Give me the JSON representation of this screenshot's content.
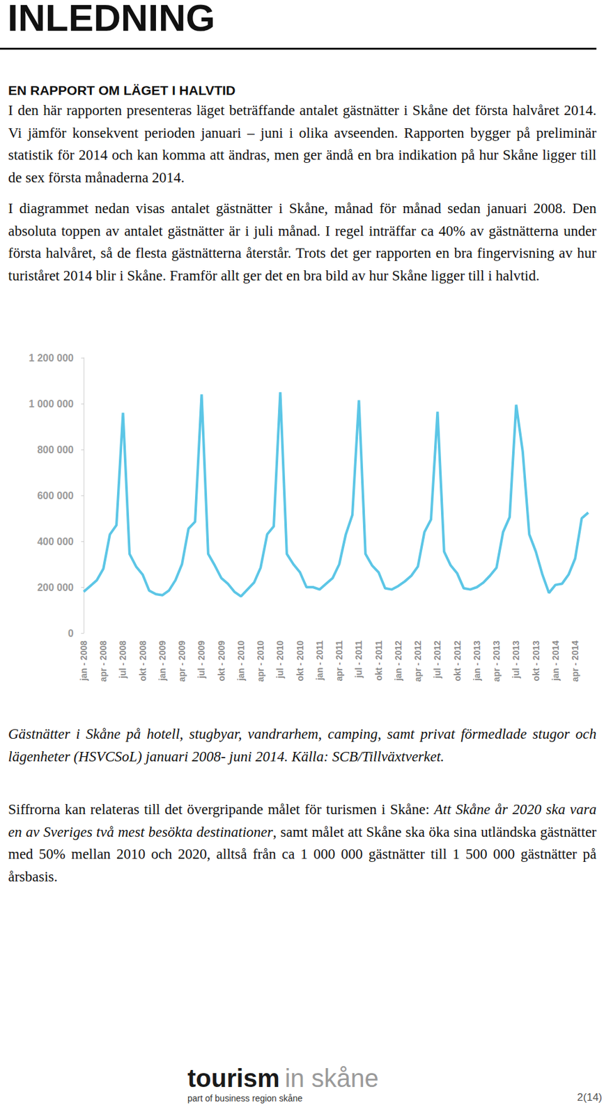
{
  "heading": "INLEDNING",
  "section_title": "EN RAPPORT OM LÄGET I HALVTID",
  "paragraphs": [
    [
      {
        "text": "I den här rapporten presenteras läget beträffande antalet gästnätter i Skåne det första halvåret 2014. Vi jämför konsekvent perioden januari – juni i olika avseenden. Rapporten bygger på preliminär statistik för 2014 och kan komma att ändras, men ger ändå en bra indikation på hur Skåne ligger till de sex första månaderna 2014.",
        "italic": false
      }
    ],
    [
      {
        "text": "I diagrammet nedan visas antalet gästnätter i Skåne, månad för månad sedan januari 2008. Den absoluta toppen av antalet gästnätter är i juli månad. I regel inträffar ca 40% av gästnätterna under första halvåret, så de flesta gästnätterna återstår. Trots det ger rapporten en bra fingervisning av hur turiståret 2014 blir i Skåne. Framför allt ger det en bra bild av hur Skåne ligger till i halvtid.",
        "italic": false
      }
    ]
  ],
  "chart_data": {
    "type": "line",
    "categories": [
      "jan - 2008",
      null,
      null,
      "apr - 2008",
      null,
      null,
      "jul - 2008",
      null,
      null,
      "okt - 2008",
      null,
      null,
      "jan - 2009",
      null,
      null,
      "apr - 2009",
      null,
      null,
      "jul - 2009",
      null,
      null,
      "okt - 2009",
      null,
      null,
      "jan - 2010",
      null,
      null,
      "apr - 2010",
      null,
      null,
      "jul - 2010",
      null,
      null,
      "okt - 2010",
      null,
      null,
      "jan - 2011",
      null,
      null,
      "apr - 2011",
      null,
      null,
      "jul - 2011",
      null,
      null,
      "okt - 2011",
      null,
      null,
      "jan - 2012",
      null,
      null,
      "apr - 2012",
      null,
      null,
      "jul - 2012",
      null,
      null,
      "okt - 2012",
      null,
      null,
      "jan - 2013",
      null,
      null,
      "apr - 2013",
      null,
      null,
      "jul - 2013",
      null,
      null,
      "okt - 2013",
      null,
      null,
      "jan - 2014",
      null,
      null,
      "apr - 2014",
      null,
      null
    ],
    "values": [
      180000,
      205000,
      230000,
      280000,
      430000,
      470000,
      960000,
      345000,
      290000,
      255000,
      185000,
      170000,
      165000,
      185000,
      230000,
      300000,
      455000,
      485000,
      1040000,
      345000,
      295000,
      240000,
      215000,
      180000,
      160000,
      190000,
      220000,
      285000,
      430000,
      465000,
      1050000,
      345000,
      300000,
      265000,
      200000,
      200000,
      190000,
      215000,
      240000,
      300000,
      430000,
      515000,
      1015000,
      345000,
      295000,
      265000,
      195000,
      190000,
      205000,
      225000,
      250000,
      290000,
      440000,
      495000,
      965000,
      355000,
      295000,
      260000,
      195000,
      190000,
      200000,
      220000,
      250000,
      285000,
      440000,
      505000,
      995000,
      790000,
      430000,
      355000,
      255000,
      175000,
      210000,
      215000,
      255000,
      325000,
      500000,
      525000
    ],
    "color": "#5cc6e6",
    "ylim": [
      0,
      1200000
    ],
    "yticks": [
      0,
      {
        "value": 200000,
        "label": "200 000"
      },
      {
        "value": 400000,
        "label": "400 000"
      },
      {
        "value": 600000,
        "label": "600 000"
      },
      {
        "value": 800000,
        "label": "800 000"
      },
      {
        "value": 1000000,
        "label": "1 000 000"
      },
      {
        "value": 1200000,
        "label": "1 200 000"
      }
    ],
    "grid": false
  },
  "caption": "Gästnätter i Skåne på hotell, stugbyar, vandrarhem, camping, samt privat förmedlade stugor och lägenheter (HSVCSoL) januari 2008- juni 2014. Källa: SCB/Tillväxtverket.",
  "final_paragraph": [
    {
      "text": "Siffrorna kan relateras till det övergripande målet för turismen i Skåne: ",
      "italic": false
    },
    {
      "text": "Att Skåne år 2020 ska vara en av Sveriges två mest besökta destinationer",
      "italic": true
    },
    {
      "text": ", samt målet att Skåne ska öka sina utländska gästnätter med 50% mellan 2010 och 2020, alltså från ca 1 000 000 gästnätter till 1 500 000 gästnätter på årsbasis.",
      "italic": false
    }
  ],
  "footer": {
    "logo_main": "tourism",
    "logo_light": "in skåne",
    "logo_sub": "part of business region skåne",
    "page": "2(14)"
  }
}
